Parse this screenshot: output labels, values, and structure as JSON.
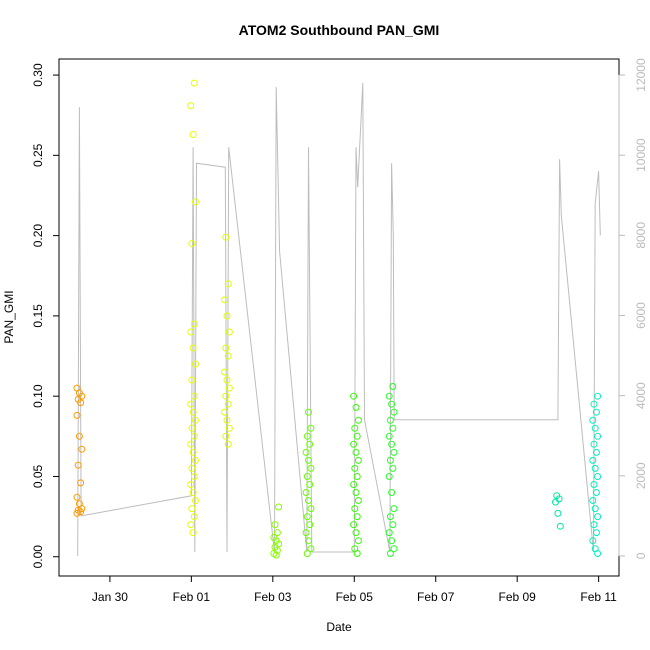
{
  "chart_data": {
    "type": "scatter",
    "title": "ATOM2 Southbound PAN_GMI",
    "xlabel": "Date",
    "ylabel": "PAN_GMI",
    "xlim": [
      "2017-01-28T18:00",
      "2017-02-11T12:00"
    ],
    "ylim": [
      -0.012,
      0.31
    ],
    "y2lim": [
      -500,
      12400
    ],
    "x_ticks": [
      {
        "date": "2017-01-30",
        "label": "Jan 30"
      },
      {
        "date": "2017-02-01",
        "label": "Feb 01"
      },
      {
        "date": "2017-02-03",
        "label": "Feb 03"
      },
      {
        "date": "2017-02-05",
        "label": "Feb 05"
      },
      {
        "date": "2017-02-07",
        "label": "Feb 07"
      },
      {
        "date": "2017-02-09",
        "label": "Feb 09"
      },
      {
        "date": "2017-02-11",
        "label": "Feb 11"
      }
    ],
    "y_ticks": [
      "0.00",
      "0.05",
      "0.10",
      "0.15",
      "0.20",
      "0.25",
      "0.30"
    ],
    "y2_ticks": [
      "0",
      "2000",
      "4000",
      "6000",
      "8000",
      "10000",
      "12000"
    ],
    "secondary_axis_color": "#bbbbbb",
    "altitude_color": "#bdbdbd",
    "point_clusters": [
      {
        "time": "2017-01-29T06:00",
        "color": "#ff9a00",
        "values": [
          0.105,
          0.102,
          0.1,
          0.098,
          0.096,
          0.088,
          0.075,
          0.067,
          0.057,
          0.046,
          0.037,
          0.033,
          0.03,
          0.029,
          0.028,
          0.027
        ]
      },
      {
        "time": "2017-02-01T01:00",
        "color": "#e6ff00",
        "values": [
          0.295,
          0.281,
          0.263,
          0.221,
          0.195,
          0.145,
          0.14,
          0.13,
          0.12,
          0.11,
          0.1,
          0.095,
          0.09,
          0.085,
          0.08,
          0.075,
          0.07,
          0.065,
          0.06,
          0.055,
          0.05,
          0.045,
          0.04,
          0.035,
          0.03,
          0.025,
          0.02,
          0.015
        ]
      },
      {
        "time": "2017-02-01T21:00",
        "color": "#ddff00",
        "values": [
          0.199,
          0.17,
          0.16,
          0.15,
          0.14,
          0.13,
          0.125,
          0.115,
          0.11,
          0.105,
          0.1,
          0.095,
          0.09,
          0.085,
          0.08,
          0.075,
          0.07
        ]
      },
      {
        "time": "2017-02-03T02:00",
        "color": "#88ff00",
        "values": [
          0.031,
          0.02,
          0.015,
          0.012,
          0.01,
          0.008,
          0.006,
          0.004,
          0.002,
          0.001
        ]
      },
      {
        "time": "2017-02-03T21:00",
        "color": "#66ff00",
        "values": [
          0.09,
          0.08,
          0.075,
          0.07,
          0.065,
          0.06,
          0.055,
          0.05,
          0.045,
          0.04,
          0.035,
          0.03,
          0.025,
          0.02,
          0.015,
          0.01,
          0.005,
          0.002
        ]
      },
      {
        "time": "2017-02-05T01:00",
        "color": "#33ff00",
        "values": [
          0.1,
          0.093,
          0.085,
          0.08,
          0.075,
          0.07,
          0.065,
          0.06,
          0.055,
          0.05,
          0.045,
          0.04,
          0.035,
          0.03,
          0.025,
          0.02,
          0.015,
          0.01,
          0.005,
          0.002
        ]
      },
      {
        "time": "2017-02-05T22:00",
        "color": "#22ff22",
        "values": [
          0.106,
          0.1,
          0.095,
          0.09,
          0.085,
          0.08,
          0.075,
          0.07,
          0.065,
          0.06,
          0.055,
          0.05,
          0.04,
          0.03,
          0.025,
          0.02,
          0.015,
          0.01,
          0.005,
          0.002
        ]
      },
      {
        "time": "2017-02-10T00:00",
        "color": "#00e8a0",
        "values": [
          0.038,
          0.036,
          0.034,
          0.027,
          0.019
        ]
      },
      {
        "time": "2017-02-10T22:00",
        "color": "#00f0c0",
        "values": [
          0.1,
          0.095,
          0.09,
          0.085,
          0.08,
          0.075,
          0.07,
          0.065,
          0.06,
          0.055,
          0.05,
          0.045,
          0.04,
          0.035,
          0.03,
          0.025,
          0.02,
          0.015,
          0.01,
          0.005,
          0.002
        ]
      }
    ],
    "altitude_line": [
      {
        "time": "2017-01-29T05:00",
        "value": 0
      },
      {
        "time": "2017-01-29T06:00",
        "value": 11200
      },
      {
        "time": "2017-01-29T07:00",
        "value": 1000
      },
      {
        "time": "2017-02-01T00:00",
        "value": 1500
      },
      {
        "time": "2017-02-01T01:00",
        "value": 10200
      },
      {
        "time": "2017-02-01T02:00",
        "value": 100
      },
      {
        "time": "2017-02-01T03:00",
        "value": 9800
      },
      {
        "time": "2017-02-01T20:00",
        "value": 9700
      },
      {
        "time": "2017-02-01T21:00",
        "value": 100
      },
      {
        "time": "2017-02-01T22:00",
        "value": 10200
      },
      {
        "time": "2017-02-03T01:00",
        "value": 100
      },
      {
        "time": "2017-02-03T02:00",
        "value": 11700
      },
      {
        "time": "2017-02-03T04:00",
        "value": 7600
      },
      {
        "time": "2017-02-03T20:00",
        "value": 100
      },
      {
        "time": "2017-02-03T21:00",
        "value": 10200
      },
      {
        "time": "2017-02-03T23:00",
        "value": 100
      },
      {
        "time": "2017-02-05T00:00",
        "value": 100
      },
      {
        "time": "2017-02-05T01:00",
        "value": 10200
      },
      {
        "time": "2017-02-05T02:00",
        "value": 9200
      },
      {
        "time": "2017-02-05T05:00",
        "value": 11800
      },
      {
        "time": "2017-02-05T06:00",
        "value": 3400
      },
      {
        "time": "2017-02-05T21:00",
        "value": 100
      },
      {
        "time": "2017-02-05T22:00",
        "value": 9800
      },
      {
        "time": "2017-02-05T23:00",
        "value": 8000
      },
      {
        "time": "2017-02-05T23:30",
        "value": 3400
      },
      {
        "time": "2017-02-10T00:00",
        "value": 3400
      },
      {
        "time": "2017-02-10T01:00",
        "value": 9900
      },
      {
        "time": "2017-02-10T02:00",
        "value": 8500
      },
      {
        "time": "2017-02-10T21:00",
        "value": 100
      },
      {
        "time": "2017-02-10T22:00",
        "value": 8800
      },
      {
        "time": "2017-02-11T00:00",
        "value": 9600
      },
      {
        "time": "2017-02-11T01:00",
        "value": 8000
      }
    ]
  }
}
